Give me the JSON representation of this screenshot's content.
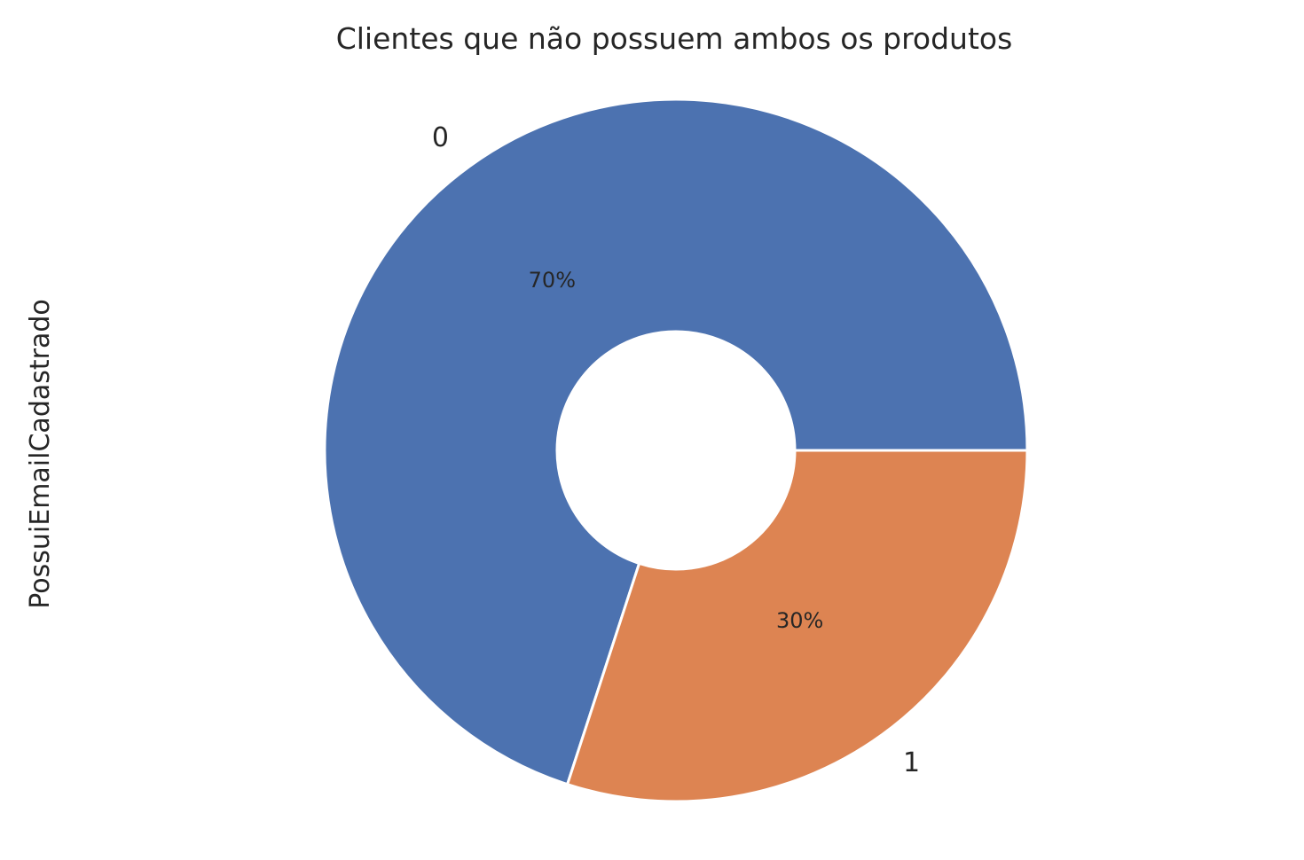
{
  "chart_data": {
    "type": "pie",
    "title": "Clientes que não possuem ambos os produtos",
    "ylabel": "PossuiEmailCadastrado",
    "categories": [
      "0",
      "1"
    ],
    "values": [
      70,
      30
    ],
    "pct_labels": [
      "70%",
      "30%"
    ],
    "colors": [
      "#4c72b0",
      "#dd8452"
    ],
    "donut": true,
    "legend": "none",
    "grid": false
  }
}
